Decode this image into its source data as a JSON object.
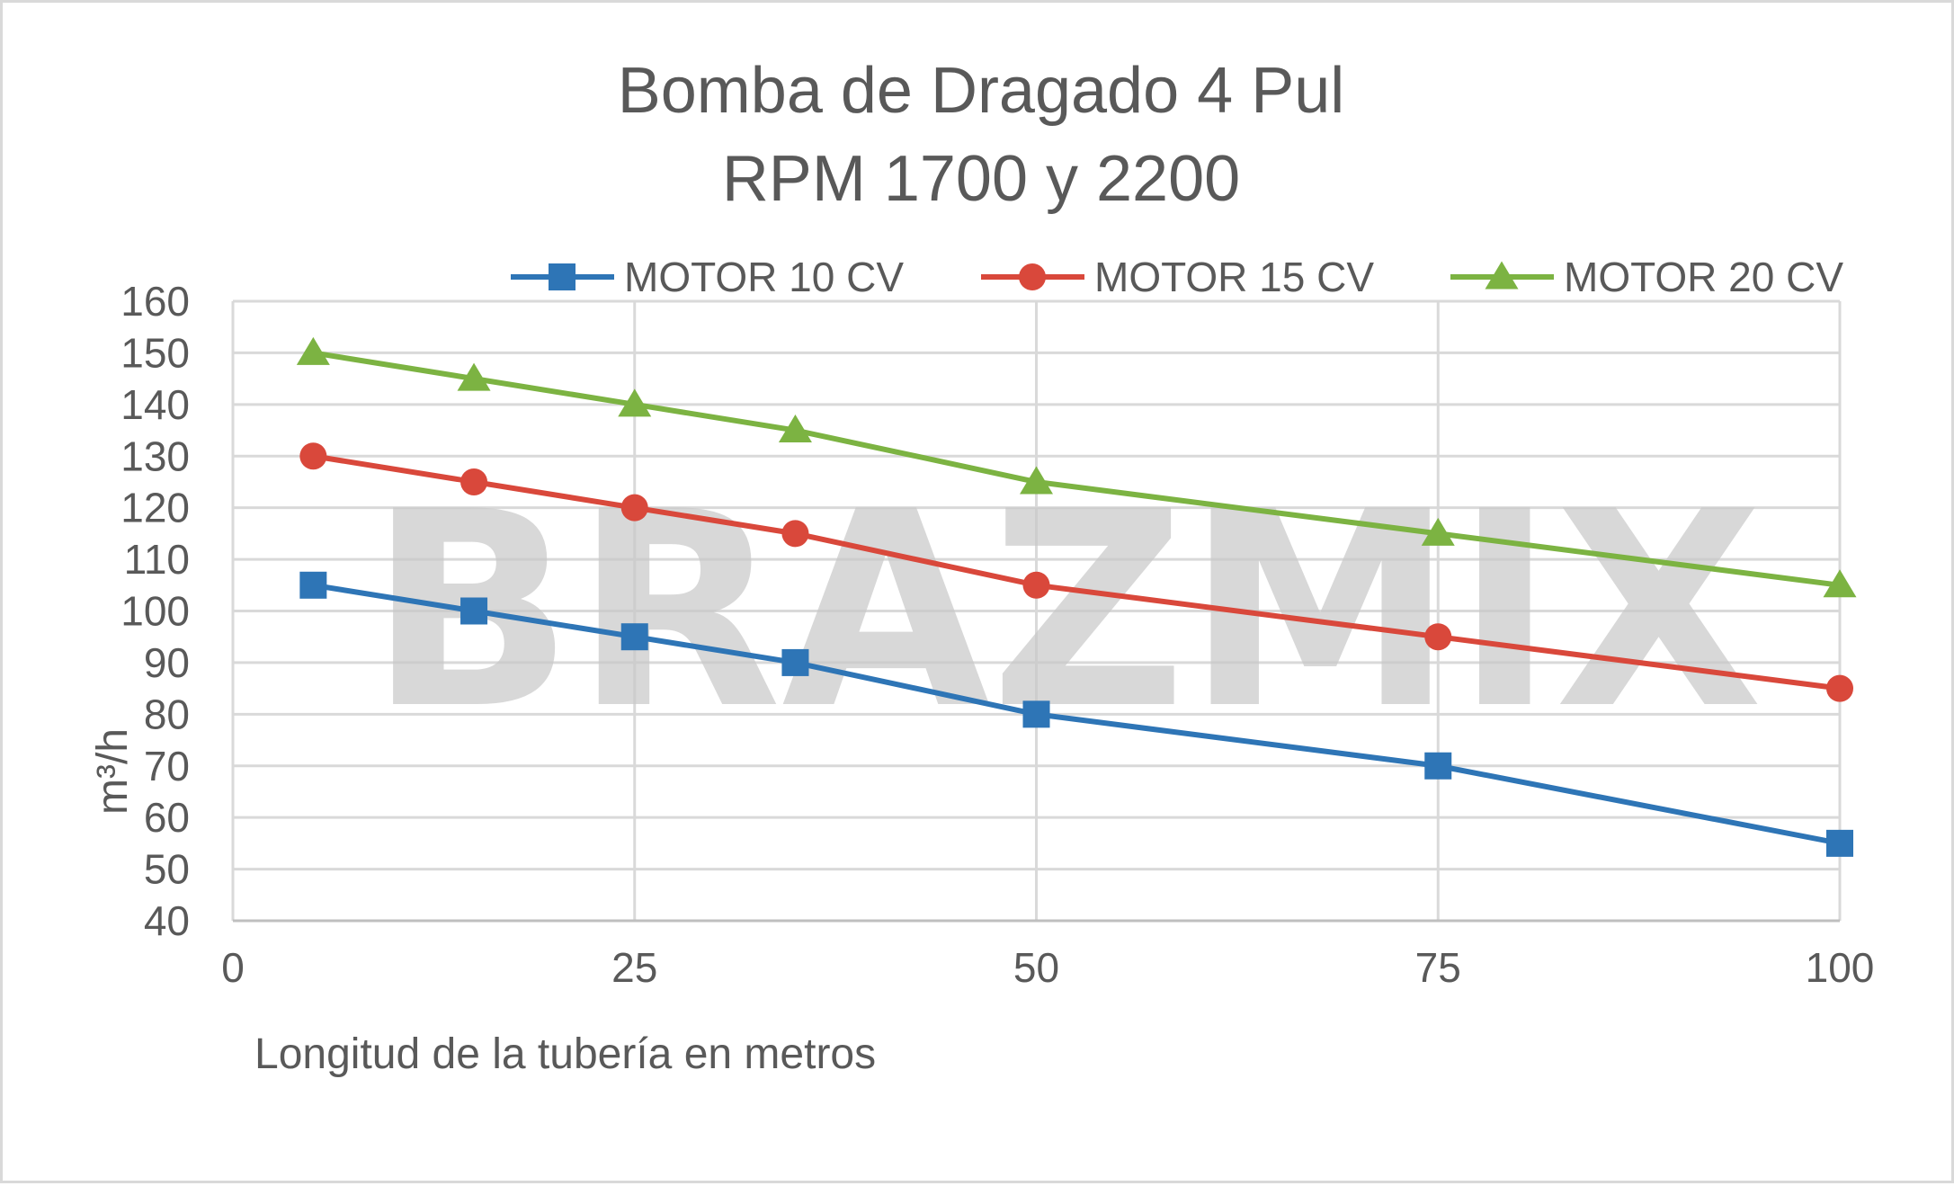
{
  "chart_data": {
    "type": "line",
    "title": [
      "Bomba de Dragado 4 Pul",
      "RPM 1700 y 2200"
    ],
    "xlabel": "Longitud de la tubería en metros",
    "ylabel": "m³/h",
    "xlim": [
      0,
      100
    ],
    "ylim": [
      40,
      160
    ],
    "x_ticks": [
      0,
      25,
      50,
      75,
      100
    ],
    "y_ticks": [
      40,
      50,
      60,
      70,
      80,
      90,
      100,
      110,
      120,
      130,
      140,
      150,
      160
    ],
    "grid": true,
    "legend_position": "top",
    "watermark": "BRAZMIX",
    "x": [
      5,
      15,
      25,
      35,
      50,
      75,
      100
    ],
    "series": [
      {
        "name": "MOTOR 10 CV",
        "color": "#2e75b6",
        "marker": "square",
        "values": [
          105,
          100,
          95,
          90,
          80,
          70,
          55
        ]
      },
      {
        "name": "MOTOR 15 CV",
        "color": "#d9483b",
        "marker": "circle",
        "values": [
          130,
          125,
          120,
          115,
          105,
          95,
          85
        ]
      },
      {
        "name": "MOTOR 20 CV",
        "color": "#7cb342",
        "marker": "triangle",
        "values": [
          150,
          145,
          140,
          135,
          125,
          115,
          105
        ]
      }
    ]
  }
}
